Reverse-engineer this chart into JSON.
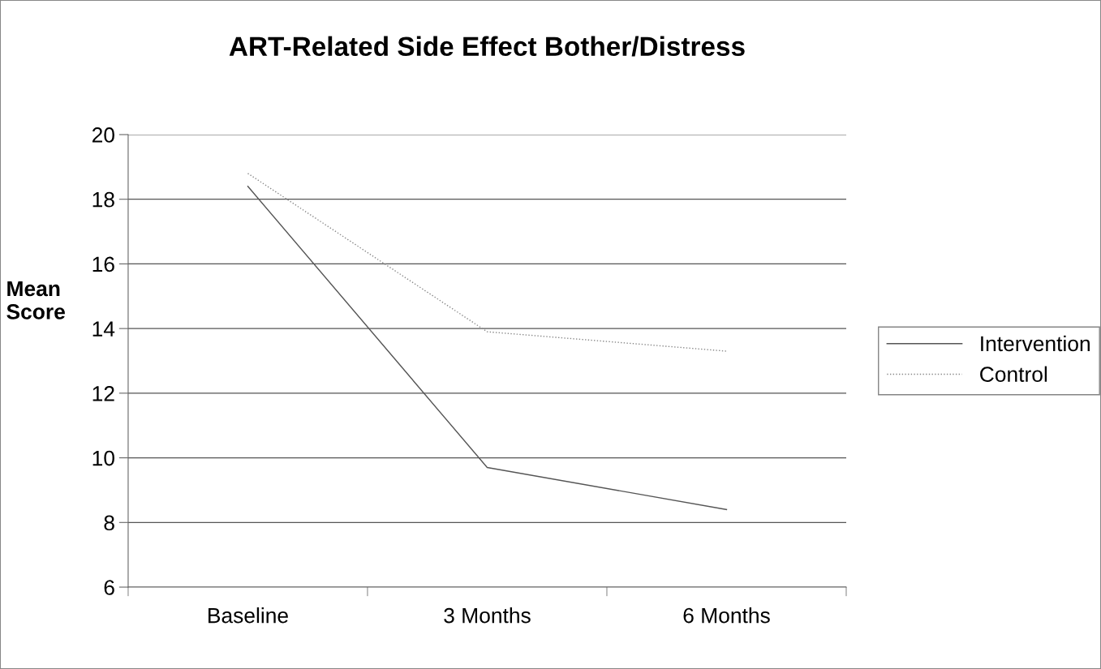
{
  "chart_data": {
    "type": "line",
    "title": "ART-Related Side Effect Bother/Distress",
    "ylabel": "Mean\nScore",
    "categories": [
      "Baseline",
      "3 Months",
      "6 Months"
    ],
    "series": [
      {
        "name": "Intervention",
        "color": "#555555",
        "values": [
          18.4,
          9.7,
          8.4
        ],
        "line_style": "solid"
      },
      {
        "name": "Control",
        "color": "#888888",
        "values": [
          18.8,
          13.9,
          13.3
        ],
        "line_style": "dotted"
      }
    ],
    "ylim": [
      6,
      20
    ],
    "yticks": [
      6,
      8,
      10,
      12,
      14,
      16,
      18,
      20
    ],
    "grid": "y",
    "legend": "right",
    "marker": "none"
  }
}
